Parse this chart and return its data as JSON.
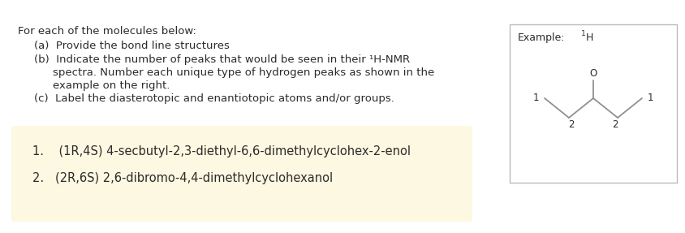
{
  "background_color": "#ffffff",
  "box_color": "#fdf8e1",
  "text_color": "#2b2b2b",
  "bond_color": "#909090",
  "title_text": "For each of the molecules below:",
  "item_a": "(a)  Provide the bond line structures",
  "item_b_line1": "(b)  Indicate the number of peaks that would be seen in their ¹H-NMR",
  "item_b_line2": "spectra. Number each unique type of hydrogen peaks as shown in the",
  "item_b_line3": "example on the right.",
  "item_c": "(c)  Label the diasterotopic and enantiotopic atoms and/or groups.",
  "molecule1": "1.    (1R,4S) 4-secbutyl-2,3-diethyl-6,6-dimethylcyclohex-2-enol",
  "molecule2": "2.   (2R,6S) 2,6-dibromo-4,4-dimethylcyclohexanol",
  "example_label": "Example:",
  "example_nmr": "¹H",
  "fontsize_main": 9.5,
  "fontsize_example": 9.0,
  "fontsize_molecule": 10.5,
  "fontsize_number": 8.5
}
